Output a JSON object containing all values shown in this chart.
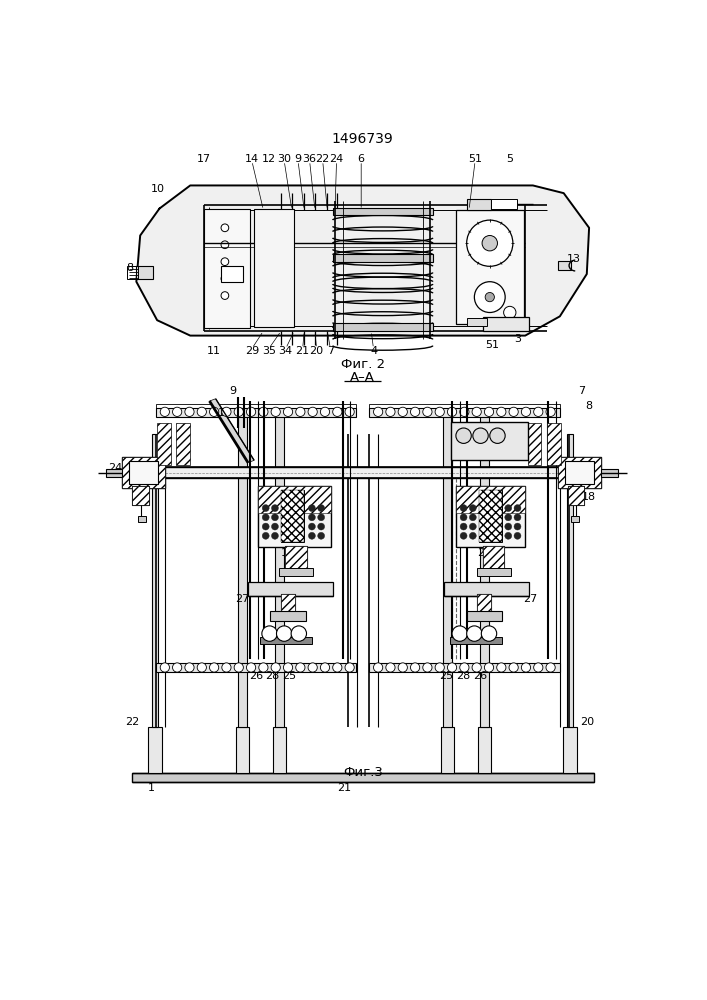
{
  "title": "1496739",
  "fig2_label": "Фиг. 2",
  "fig3_label": "Фиг.3",
  "aa_label": "А–А",
  "bg_color": "#ffffff",
  "lc": "#000000",
  "hatch_color": "#555555"
}
